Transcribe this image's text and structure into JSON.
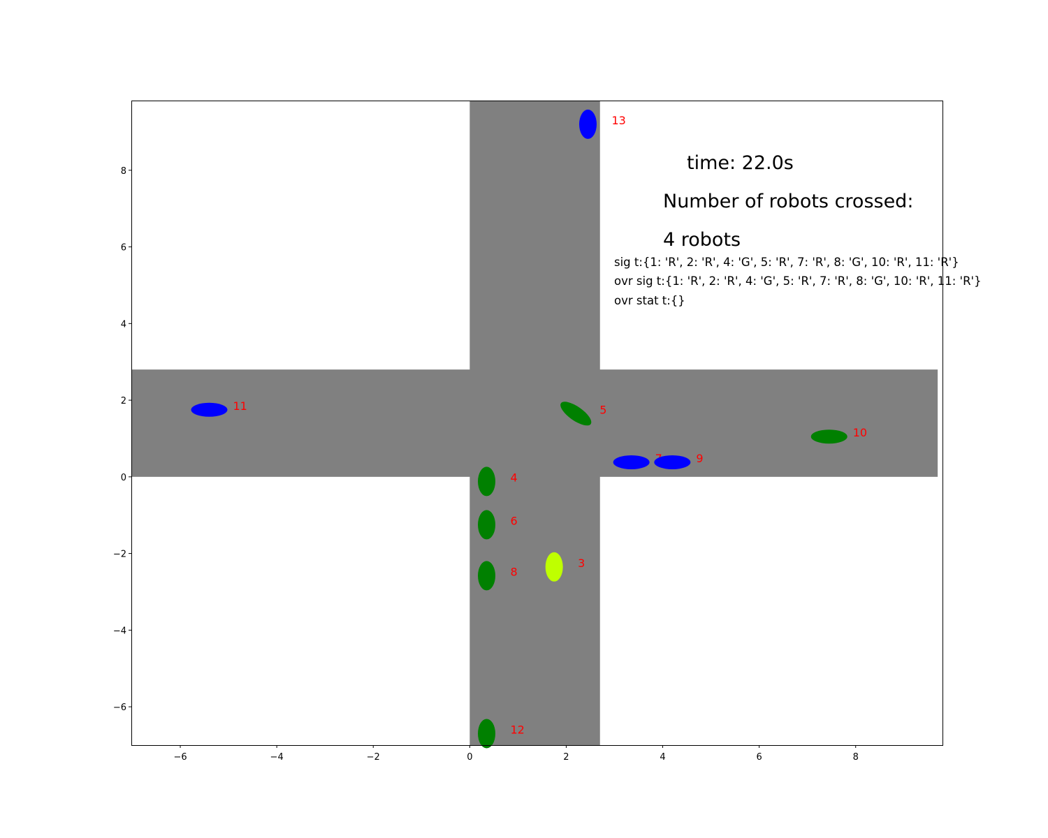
{
  "chart_data": {
    "type": "scatter",
    "title": "",
    "xlabel": "",
    "ylabel": "",
    "xlim": [
      -7,
      9.8
    ],
    "ylim": [
      -7,
      9.8
    ],
    "grid": false,
    "xticks": [
      -6,
      -4,
      -2,
      0,
      2,
      4,
      6,
      8
    ],
    "yticks": [
      -6,
      -4,
      -2,
      0,
      2,
      4,
      6,
      8
    ],
    "xtick_labels": [
      "−6",
      "−4",
      "−2",
      "0",
      "2",
      "4",
      "6",
      "8"
    ],
    "ytick_labels": [
      "−6",
      "−4",
      "−2",
      "0",
      "2",
      "4",
      "6",
      "8"
    ],
    "roads": {
      "color": "#808080",
      "vertical": {
        "x_range": [
          0,
          2.7
        ],
        "y_range": [
          -7,
          9.8
        ]
      },
      "horizontal": {
        "x_range": [
          -7,
          9.7
        ],
        "y_range": [
          0,
          2.8
        ]
      }
    },
    "robots": [
      {
        "id": "13",
        "x": 2.45,
        "y": 9.2,
        "color": "#0000ff",
        "orientation": "vertical",
        "angle": 0
      },
      {
        "id": "11",
        "x": -5.4,
        "y": 1.75,
        "color": "#0000ff",
        "orientation": "horizontal",
        "angle": 0
      },
      {
        "id": "5",
        "x": 2.2,
        "y": 1.65,
        "color": "#008000",
        "orientation": "horizontal",
        "angle": 35
      },
      {
        "id": "10",
        "x": 7.45,
        "y": 1.05,
        "color": "#008000",
        "orientation": "horizontal",
        "angle": 0
      },
      {
        "id": "7",
        "x": 3.35,
        "y": 0.38,
        "color": "#0000ff",
        "orientation": "horizontal",
        "angle": 0
      },
      {
        "id": "9",
        "x": 4.2,
        "y": 0.38,
        "color": "#0000ff",
        "orientation": "horizontal",
        "angle": 0
      },
      {
        "id": "4",
        "x": 0.35,
        "y": -0.12,
        "color": "#008000",
        "orientation": "vertical",
        "angle": 0
      },
      {
        "id": "6",
        "x": 0.35,
        "y": -1.25,
        "color": "#008000",
        "orientation": "vertical",
        "angle": 0
      },
      {
        "id": "3",
        "x": 1.75,
        "y": -2.35,
        "color": "#bfff00",
        "orientation": "vertical",
        "angle": 0
      },
      {
        "id": "8",
        "x": 0.35,
        "y": -2.58,
        "color": "#008000",
        "orientation": "vertical",
        "angle": 0
      },
      {
        "id": "12",
        "x": 0.35,
        "y": -6.7,
        "color": "#008000",
        "orientation": "vertical",
        "angle": 0
      }
    ],
    "label_color": "#ff0000",
    "annotations": {
      "time": "time: 22.0s",
      "crossed_title": "Number of robots crossed:",
      "crossed_count": "4 robots",
      "sig": "sig t:{1: 'R', 2: 'R', 4: 'G', 5: 'R', 7: 'R', 8: 'G', 10: 'R', 11: 'R'}",
      "ovr_sig": "ovr sig t:{1: 'R', 2: 'R', 4: 'G', 5: 'R', 7: 'R', 8: 'G', 10: 'R', 11: 'R'}",
      "ovr_stat": "ovr stat t:{}"
    }
  }
}
